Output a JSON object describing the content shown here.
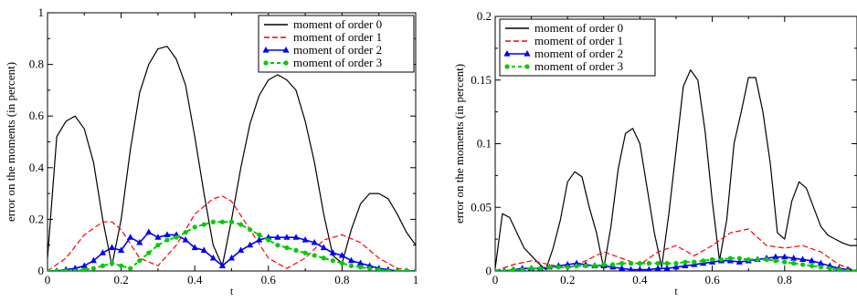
{
  "chart_data": [
    {
      "type": "line",
      "xlabel": "t",
      "ylabel": "error on the moments (in percent)",
      "xlim": [
        0,
        1
      ],
      "ylim": [
        0,
        1
      ],
      "xticks": [
        0,
        0.2,
        0.4,
        0.6,
        0.8,
        1
      ],
      "xtick_labels": [
        "0",
        "0.2",
        "0.4",
        "0.6",
        "0.8",
        "1"
      ],
      "yticks": [
        0,
        0.2,
        0.4,
        0.6,
        0.8,
        1
      ],
      "ytick_labels": [
        "0",
        "0.2",
        "0.4",
        "0.6",
        "0.8",
        "1"
      ],
      "legend_position": "top-right",
      "grid": false,
      "series": [
        {
          "name": "moment of order 0",
          "color": "#000000",
          "dash": "solid",
          "marker": "none",
          "x": [
            0,
            0.025,
            0.05,
            0.075,
            0.1,
            0.125,
            0.15,
            0.175,
            0.2,
            0.225,
            0.25,
            0.275,
            0.3,
            0.325,
            0.35,
            0.375,
            0.4,
            0.425,
            0.45,
            0.475,
            0.5,
            0.525,
            0.55,
            0.575,
            0.6,
            0.625,
            0.65,
            0.675,
            0.7,
            0.725,
            0.75,
            0.775,
            0.8,
            0.825,
            0.85,
            0.875,
            0.9,
            0.925,
            0.95,
            0.975,
            1
          ],
          "y": [
            0.05,
            0.52,
            0.58,
            0.6,
            0.55,
            0.42,
            0.2,
            0.02,
            0.2,
            0.47,
            0.69,
            0.8,
            0.86,
            0.87,
            0.82,
            0.72,
            0.52,
            0.3,
            0.1,
            0.02,
            0.2,
            0.4,
            0.57,
            0.68,
            0.74,
            0.76,
            0.74,
            0.7,
            0.58,
            0.42,
            0.22,
            0.06,
            0.03,
            0.16,
            0.26,
            0.3,
            0.3,
            0.28,
            0.22,
            0.15,
            0.1
          ]
        },
        {
          "name": "moment of order 1",
          "color": "#ff0000",
          "dash": "dashed",
          "marker": "none",
          "x": [
            0,
            0.05,
            0.1,
            0.15,
            0.175,
            0.2,
            0.25,
            0.3,
            0.35,
            0.4,
            0.45,
            0.475,
            0.5,
            0.55,
            0.6,
            0.65,
            0.7,
            0.75,
            0.8,
            0.85,
            0.9,
            0.95,
            1
          ],
          "y": [
            0,
            0.05,
            0.14,
            0.19,
            0.19,
            0.16,
            0.05,
            0.02,
            0.1,
            0.22,
            0.28,
            0.29,
            0.27,
            0.16,
            0.05,
            0.01,
            0.05,
            0.12,
            0.14,
            0.11,
            0.05,
            0.01,
            0
          ]
        },
        {
          "name": "moment of order 2",
          "color": "#0000ff",
          "dash": "solid",
          "marker": "triangle",
          "x": [
            0,
            0.025,
            0.05,
            0.075,
            0.1,
            0.125,
            0.15,
            0.175,
            0.2,
            0.225,
            0.25,
            0.275,
            0.3,
            0.325,
            0.35,
            0.375,
            0.4,
            0.425,
            0.45,
            0.475,
            0.5,
            0.525,
            0.55,
            0.575,
            0.6,
            0.625,
            0.65,
            0.675,
            0.7,
            0.725,
            0.75,
            0.775,
            0.8,
            0.825,
            0.85,
            0.875,
            0.9,
            0.925,
            0.95,
            0.975,
            1
          ],
          "y": [
            0,
            0,
            0.005,
            0.01,
            0.02,
            0.04,
            0.07,
            0.09,
            0.08,
            0.13,
            0.11,
            0.15,
            0.13,
            0.14,
            0.14,
            0.12,
            0.09,
            0.08,
            0.05,
            0.02,
            0.05,
            0.08,
            0.1,
            0.12,
            0.13,
            0.13,
            0.13,
            0.13,
            0.12,
            0.11,
            0.09,
            0.07,
            0.06,
            0.04,
            0.03,
            0.02,
            0.01,
            0.005,
            0,
            0,
            0
          ]
        },
        {
          "name": "moment of order 3",
          "color": "#00cc00",
          "dash": "dashed",
          "marker": "circle",
          "x": [
            0,
            0.025,
            0.05,
            0.075,
            0.1,
            0.125,
            0.15,
            0.175,
            0.2,
            0.225,
            0.25,
            0.275,
            0.3,
            0.325,
            0.35,
            0.375,
            0.4,
            0.425,
            0.45,
            0.475,
            0.5,
            0.525,
            0.55,
            0.575,
            0.6,
            0.625,
            0.65,
            0.675,
            0.7,
            0.725,
            0.75,
            0.775,
            0.8,
            0.825,
            0.85,
            0.875,
            0.9,
            0.925,
            0.95,
            0.975,
            1
          ],
          "y": [
            0,
            0,
            0,
            0,
            0.005,
            0.01,
            0.02,
            0.03,
            0.02,
            0.01,
            0.04,
            0.07,
            0.1,
            0.12,
            0.13,
            0.15,
            0.17,
            0.18,
            0.19,
            0.19,
            0.19,
            0.18,
            0.16,
            0.14,
            0.12,
            0.1,
            0.09,
            0.08,
            0.07,
            0.06,
            0.05,
            0.04,
            0.03,
            0.02,
            0.015,
            0.01,
            0.005,
            0,
            0,
            0,
            0
          ]
        }
      ]
    },
    {
      "type": "line",
      "xlabel": "t",
      "ylabel": "error on the moments (in percent)",
      "xlim": [
        0,
        1
      ],
      "ylim": [
        0,
        0.2
      ],
      "xticks": [
        0,
        0.2,
        0.4,
        0.6,
        0.8
      ],
      "xtick_labels": [
        "0",
        "0.2",
        "0.4",
        "0.6",
        "0.8"
      ],
      "yticks": [
        0,
        0.05,
        0.1,
        0.15,
        0.2
      ],
      "ytick_labels": [
        "0",
        "0.05",
        "0.1",
        "0.15",
        "0.2"
      ],
      "legend_position": "top-left",
      "grid": false,
      "series": [
        {
          "name": "moment of order 0",
          "color": "#000000",
          "dash": "solid",
          "marker": "none",
          "x": [
            0,
            0.02,
            0.04,
            0.06,
            0.08,
            0.1,
            0.12,
            0.14,
            0.16,
            0.18,
            0.2,
            0.22,
            0.24,
            0.26,
            0.28,
            0.3,
            0.32,
            0.34,
            0.36,
            0.38,
            0.4,
            0.42,
            0.44,
            0.46,
            0.48,
            0.5,
            0.52,
            0.54,
            0.56,
            0.58,
            0.6,
            0.62,
            0.64,
            0.66,
            0.68,
            0.7,
            0.72,
            0.74,
            0.76,
            0.78,
            0.8,
            0.82,
            0.84,
            0.86,
            0.88,
            0.9,
            0.92,
            0.94,
            0.96,
            0.98,
            1
          ],
          "y": [
            0.002,
            0.045,
            0.042,
            0.03,
            0.018,
            0.012,
            0.006,
            0.001,
            0.018,
            0.04,
            0.07,
            0.078,
            0.074,
            0.05,
            0.03,
            0.002,
            0.035,
            0.08,
            0.108,
            0.112,
            0.1,
            0.065,
            0.03,
            0.003,
            0.045,
            0.095,
            0.145,
            0.158,
            0.15,
            0.11,
            0.055,
            0.008,
            0.04,
            0.1,
            0.125,
            0.152,
            0.152,
            0.125,
            0.085,
            0.03,
            0.025,
            0.055,
            0.07,
            0.065,
            0.05,
            0.035,
            0.028,
            0.025,
            0.022,
            0.02,
            0.02
          ]
        },
        {
          "name": "moment of order 1",
          "color": "#ff0000",
          "dash": "dashed",
          "marker": "none",
          "x": [
            0,
            0.05,
            0.1,
            0.15,
            0.2,
            0.25,
            0.3,
            0.35,
            0.4,
            0.45,
            0.5,
            0.55,
            0.6,
            0.65,
            0.7,
            0.75,
            0.8,
            0.85,
            0.9,
            0.95,
            1
          ],
          "y": [
            0,
            0.005,
            0.008,
            0.005,
            0.002,
            0.008,
            0.015,
            0.01,
            0.005,
            0.015,
            0.02,
            0.012,
            0.02,
            0.03,
            0.033,
            0.02,
            0.018,
            0.02,
            0.015,
            0.005,
            0
          ]
        },
        {
          "name": "moment of order 2",
          "color": "#0000ff",
          "dash": "solid",
          "marker": "triangle",
          "x": [
            0,
            0.025,
            0.05,
            0.075,
            0.1,
            0.125,
            0.15,
            0.175,
            0.2,
            0.225,
            0.25,
            0.275,
            0.3,
            0.325,
            0.35,
            0.375,
            0.4,
            0.425,
            0.45,
            0.475,
            0.5,
            0.525,
            0.55,
            0.575,
            0.6,
            0.625,
            0.65,
            0.675,
            0.7,
            0.725,
            0.75,
            0.775,
            0.8,
            0.825,
            0.85,
            0.875,
            0.9,
            0.925,
            0.95,
            0.975,
            1
          ],
          "y": [
            0,
            0,
            0.001,
            0.002,
            0.002,
            0.002,
            0.003,
            0.004,
            0.005,
            0.006,
            0.005,
            0.004,
            0.004,
            0.003,
            0.002,
            0.001,
            0.001,
            0.001,
            0.002,
            0.002,
            0.003,
            0.004,
            0.005,
            0.006,
            0.007,
            0.008,
            0.008,
            0.007,
            0.008,
            0.009,
            0.01,
            0.011,
            0.011,
            0.01,
            0.009,
            0.008,
            0.006,
            0.004,
            0.002,
            0.001,
            0
          ]
        },
        {
          "name": "moment of order 3",
          "color": "#00cc00",
          "dash": "dashed",
          "marker": "circle",
          "x": [
            0,
            0.025,
            0.05,
            0.075,
            0.1,
            0.125,
            0.15,
            0.175,
            0.2,
            0.225,
            0.25,
            0.275,
            0.3,
            0.325,
            0.35,
            0.375,
            0.4,
            0.425,
            0.45,
            0.475,
            0.5,
            0.525,
            0.55,
            0.575,
            0.6,
            0.625,
            0.65,
            0.675,
            0.7,
            0.725,
            0.75,
            0.775,
            0.8,
            0.825,
            0.85,
            0.875,
            0.9,
            0.925,
            0.95,
            0.975,
            1
          ],
          "y": [
            0,
            0,
            0.001,
            0.001,
            0.002,
            0.002,
            0.003,
            0.003,
            0.003,
            0.004,
            0.004,
            0.004,
            0.005,
            0.005,
            0.006,
            0.006,
            0.006,
            0.006,
            0.006,
            0.006,
            0.006,
            0.007,
            0.007,
            0.008,
            0.009,
            0.009,
            0.01,
            0.01,
            0.009,
            0.009,
            0.009,
            0.008,
            0.007,
            0.006,
            0.005,
            0.004,
            0.003,
            0.002,
            0.001,
            0,
            0
          ]
        }
      ]
    }
  ]
}
